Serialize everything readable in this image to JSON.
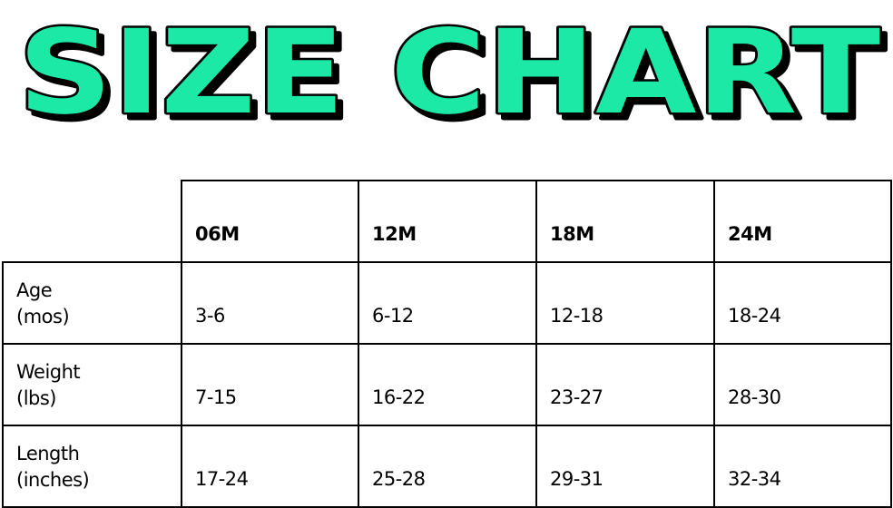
{
  "title": "SIZE CHART",
  "title_color": "#1de9a6",
  "table": {
    "columns": [
      "06M",
      "12M",
      "18M",
      "24M"
    ],
    "rows": [
      {
        "label_line1": "Age",
        "label_line2": "(mos)",
        "values": [
          "3-6",
          "6-12",
          "12-18",
          "18-24"
        ]
      },
      {
        "label_line1": "Weight",
        "label_line2": "(lbs)",
        "values": [
          "7-15",
          "16-22",
          "23-27",
          "28-30"
        ]
      },
      {
        "label_line1": "Length",
        "label_line2": "(inches)",
        "values": [
          "17-24",
          "25-28",
          "29-31",
          "32-34"
        ]
      }
    ]
  }
}
